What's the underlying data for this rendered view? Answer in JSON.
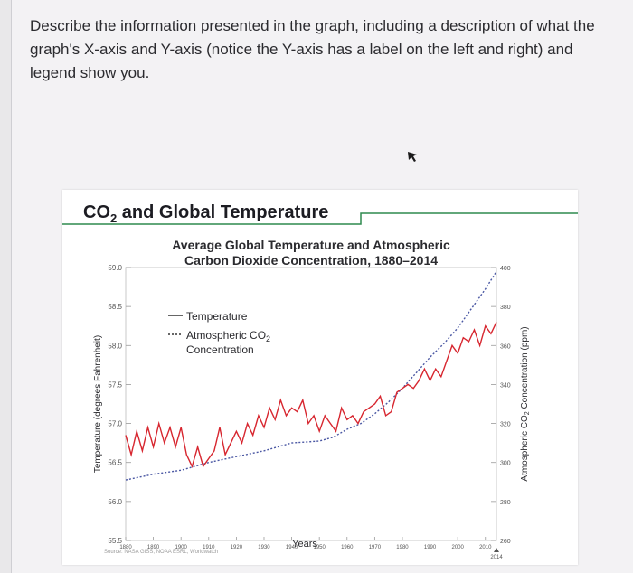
{
  "question": {
    "text": "Describe the information presented in the graph, including a description of what the graph's X-axis and Y-axis (notice the Y-axis has a label on the left and right) and legend show you."
  },
  "figure": {
    "title_prefix": "CO",
    "title_sub": "2",
    "title_suffix": " and Global Temperature",
    "source": "Source: NASA GISS, NOAA ESRL, Worldwatch"
  },
  "chart_data": {
    "type": "line",
    "title_line1": "Average Global Temperature and Atmospheric",
    "title_line2": "Carbon Dioxide Concentration, 1880–2014",
    "xlabel": "Years",
    "ylabel_left": "Temperature (degrees Fahrenheit)",
    "ylabel_right_prefix": "Atmospheric CO",
    "ylabel_right_sub": "2",
    "ylabel_right_suffix": " Concentration (ppm)",
    "xlim": [
      1880,
      2014
    ],
    "ylim_left": [
      55.5,
      59.0
    ],
    "ylim_right": [
      260,
      400
    ],
    "x_ticks": [
      "1880",
      "1890",
      "1900",
      "1910",
      "1920",
      "1930",
      "1940",
      "1950",
      "1960",
      "1970",
      "1980",
      "1990",
      "2000",
      "2010"
    ],
    "x_tick_extra": "2014",
    "y_ticks_left": [
      "55.5",
      "56.0",
      "56.5",
      "57.0",
      "57.5",
      "58.0",
      "58.5",
      "59.0"
    ],
    "y_ticks_right": [
      "260",
      "280",
      "300",
      "320",
      "340",
      "360",
      "380",
      "400"
    ],
    "legend": {
      "temperature": "Temperature",
      "co2_line1_prefix": "Atmospheric CO",
      "co2_line1_sub": "2",
      "co2_line2": "Concentration"
    },
    "colors": {
      "temperature": "#d7262f",
      "co2": "#4a57a3",
      "axis": "#9a9a9a"
    },
    "series": [
      {
        "name": "Temperature",
        "axis": "left",
        "x": [
          1880,
          1882,
          1884,
          1886,
          1888,
          1890,
          1892,
          1894,
          1896,
          1898,
          1900,
          1902,
          1904,
          1906,
          1908,
          1910,
          1912,
          1914,
          1916,
          1918,
          1920,
          1922,
          1924,
          1926,
          1928,
          1930,
          1932,
          1934,
          1936,
          1938,
          1940,
          1942,
          1944,
          1946,
          1948,
          1950,
          1952,
          1954,
          1956,
          1958,
          1960,
          1962,
          1964,
          1966,
          1968,
          1970,
          1972,
          1974,
          1976,
          1978,
          1980,
          1982,
          1984,
          1986,
          1988,
          1990,
          1992,
          1994,
          1996,
          1998,
          2000,
          2002,
          2004,
          2006,
          2008,
          2010,
          2012,
          2014
        ],
        "values": [
          56.85,
          56.6,
          56.9,
          56.65,
          56.95,
          56.7,
          57.0,
          56.75,
          56.95,
          56.7,
          56.95,
          56.6,
          56.45,
          56.7,
          56.45,
          56.55,
          56.65,
          56.95,
          56.6,
          56.75,
          56.9,
          56.75,
          57.0,
          56.85,
          57.1,
          56.95,
          57.2,
          57.05,
          57.3,
          57.1,
          57.2,
          57.15,
          57.3,
          57.0,
          57.1,
          56.9,
          57.1,
          57.0,
          56.9,
          57.2,
          57.05,
          57.1,
          57.0,
          57.15,
          57.2,
          57.25,
          57.35,
          57.1,
          57.15,
          57.4,
          57.45,
          57.5,
          57.45,
          57.55,
          57.7,
          57.55,
          57.7,
          57.6,
          57.8,
          58.0,
          57.9,
          58.1,
          58.05,
          58.2,
          58.0,
          58.25,
          58.15,
          58.3
        ]
      },
      {
        "name": "Atmospheric CO2 Concentration",
        "axis": "right",
        "x": [
          1880,
          1890,
          1900,
          1910,
          1920,
          1930,
          1940,
          1950,
          1955,
          1960,
          1965,
          1970,
          1975,
          1980,
          1985,
          1990,
          1995,
          2000,
          2005,
          2010,
          2014
        ],
        "values": [
          291,
          294,
          296,
          300,
          303,
          306,
          310,
          311,
          313,
          317,
          320,
          325,
          331,
          338,
          346,
          354,
          361,
          369,
          379,
          389,
          398
        ]
      }
    ]
  }
}
